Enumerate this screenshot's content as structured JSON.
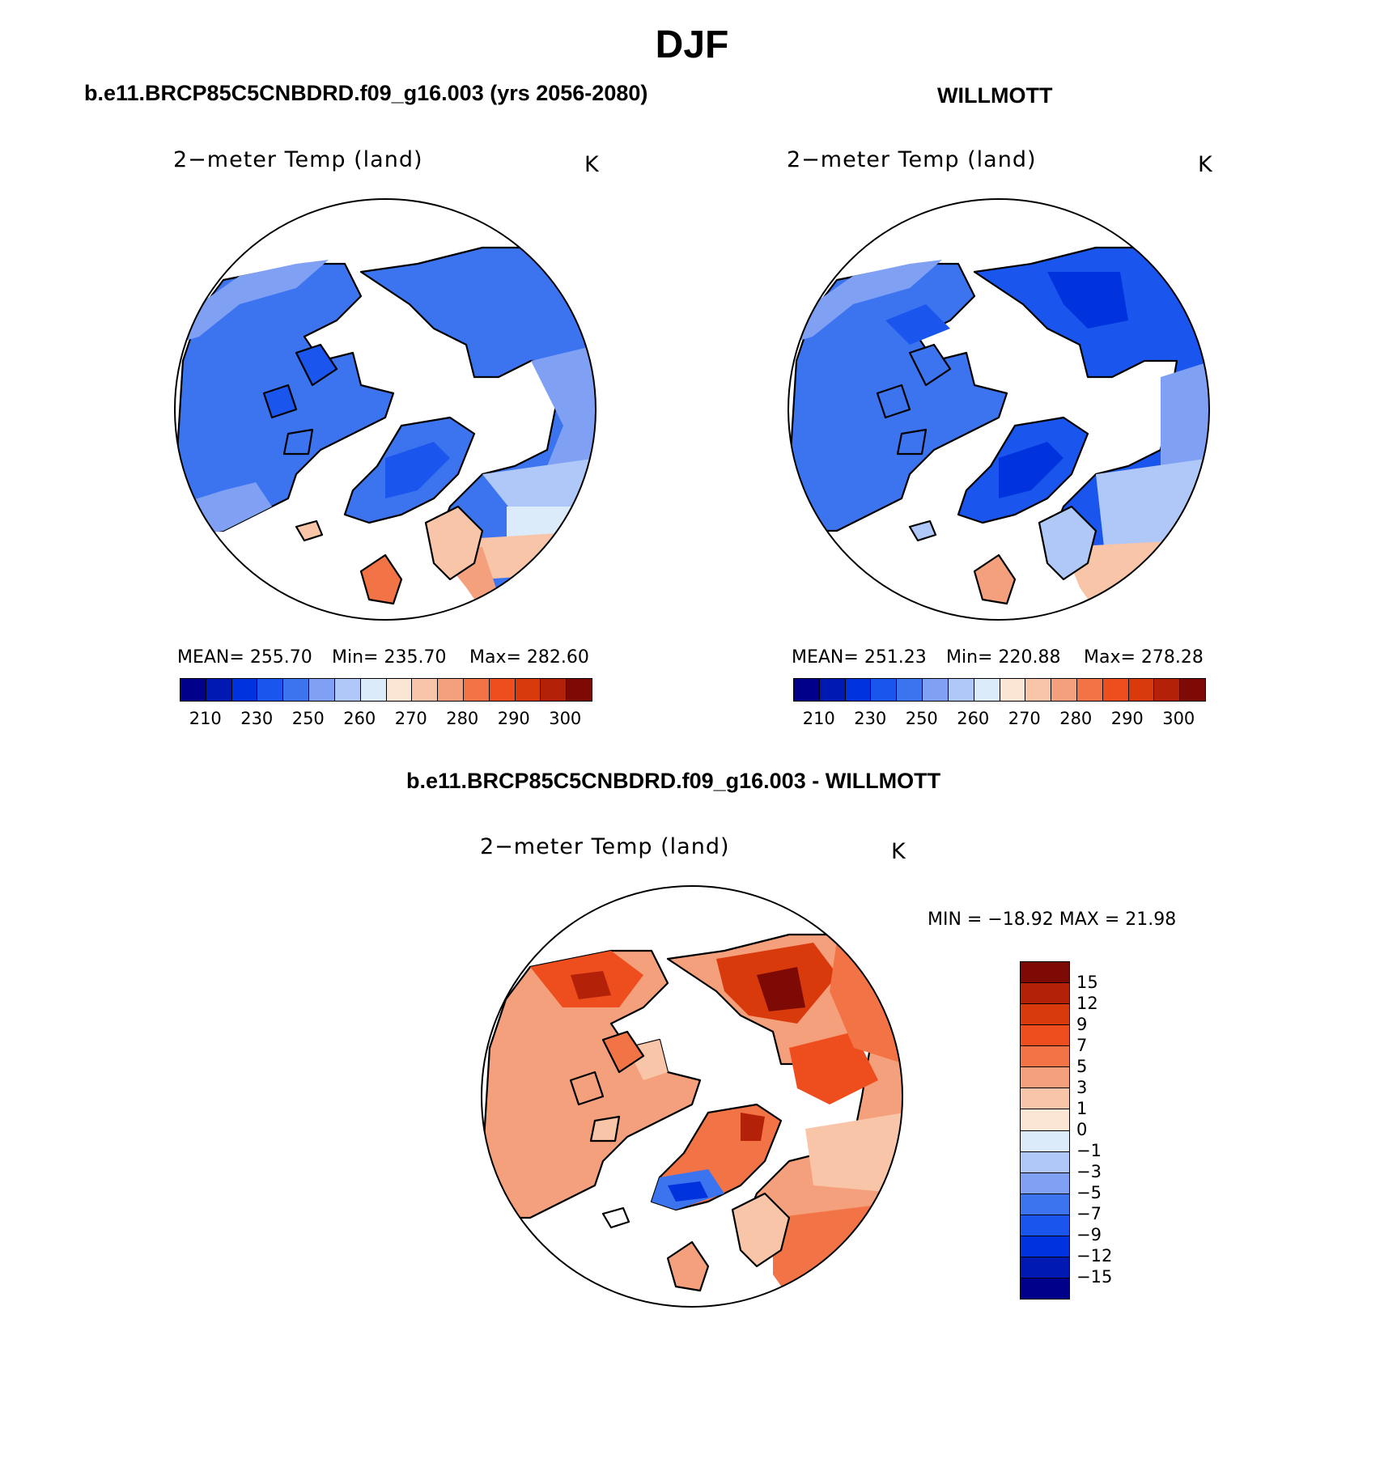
{
  "title": "DJF",
  "panels": {
    "model": {
      "title": "b.e11.BRCP85C5CNBDRD.f09_g16.003 (yrs 2056-2080)",
      "variable": "2−meter Temp (land)",
      "units": "K",
      "mean_text": "MEAN=  255.70",
      "min_text": "Min=  235.70",
      "max_text": "Max=  282.60"
    },
    "obs": {
      "title": "WILLMOTT",
      "variable": "2−meter Temp (land)",
      "units": "K",
      "mean_text": "MEAN=  251.23",
      "min_text": "Min=  220.88",
      "max_text": "Max=  278.28"
    },
    "diff": {
      "title": "b.e11.BRCP85C5CNBDRD.f09_g16.003 - WILLMOTT",
      "variable": "2−meter Temp (land)",
      "units": "K",
      "minmax_text": "MIN = −18.92  MAX =   21.98"
    }
  },
  "abs_colorbar": {
    "colors": [
      "#00008b",
      "#0019b3",
      "#0033dd",
      "#1a55ee",
      "#3c74f0",
      "#7fa0f3",
      "#b0c8f7",
      "#dcebfa",
      "#fbe6d6",
      "#f9c5a8",
      "#f5a07c",
      "#f27446",
      "#ee4d1e",
      "#d83a0c",
      "#b32108",
      "#7d0a04"
    ],
    "tick_labels": [
      "210",
      "230",
      "250",
      "260",
      "270",
      "280",
      "290",
      "300"
    ]
  },
  "diff_colorbar": {
    "colors": [
      "#7d0a04",
      "#b32108",
      "#d83a0c",
      "#ee4d1e",
      "#f27446",
      "#f5a07c",
      "#f9c5a8",
      "#fbe6d6",
      "#dcebfa",
      "#b0c8f7",
      "#7fa0f3",
      "#3c74f0",
      "#1a55ee",
      "#0033dd",
      "#0019b3",
      "#00008b"
    ],
    "tick_labels": [
      "15",
      "12",
      "9",
      "7",
      "5",
      "3",
      "1",
      "0",
      "−1",
      "−3",
      "−5",
      "−7",
      "−9",
      "−12",
      "−15"
    ]
  }
}
